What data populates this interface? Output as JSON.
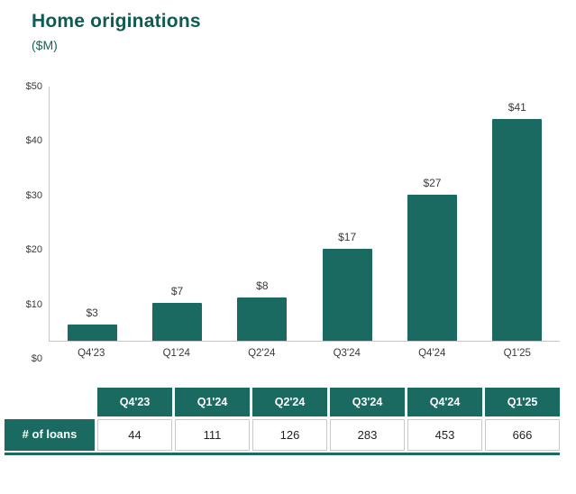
{
  "header": {
    "title": "Home originations",
    "subtitle": "($M)"
  },
  "colors": {
    "teal": "#1a6a62",
    "title_teal": "#0d5c53",
    "axis_gray": "#c6c6c6"
  },
  "chart_data": {
    "type": "bar",
    "title": "Home originations ($M)",
    "categories": [
      "Q4'23",
      "Q1'24",
      "Q2'24",
      "Q3'24",
      "Q4'24",
      "Q1'25"
    ],
    "values": [
      3,
      7,
      8,
      17,
      27,
      41
    ],
    "value_labels": [
      "$3",
      "$7",
      "$8",
      "$17",
      "$27",
      "$41"
    ],
    "yticks_top_to_bottom": [
      "$50",
      "$40",
      "$30",
      "$20",
      "$10",
      "$0"
    ],
    "ylim": [
      0,
      50
    ],
    "xlabel": "",
    "ylabel": "$M",
    "grid": "off",
    "legend": "none",
    "bar_color": "#1a6a62"
  },
  "table": {
    "row_label": "# of loans",
    "columns": [
      "Q4'23",
      "Q1'24",
      "Q2'24",
      "Q3'24",
      "Q4'24",
      "Q1'25"
    ],
    "values": [
      "44",
      "111",
      "126",
      "283",
      "453",
      "666"
    ]
  }
}
